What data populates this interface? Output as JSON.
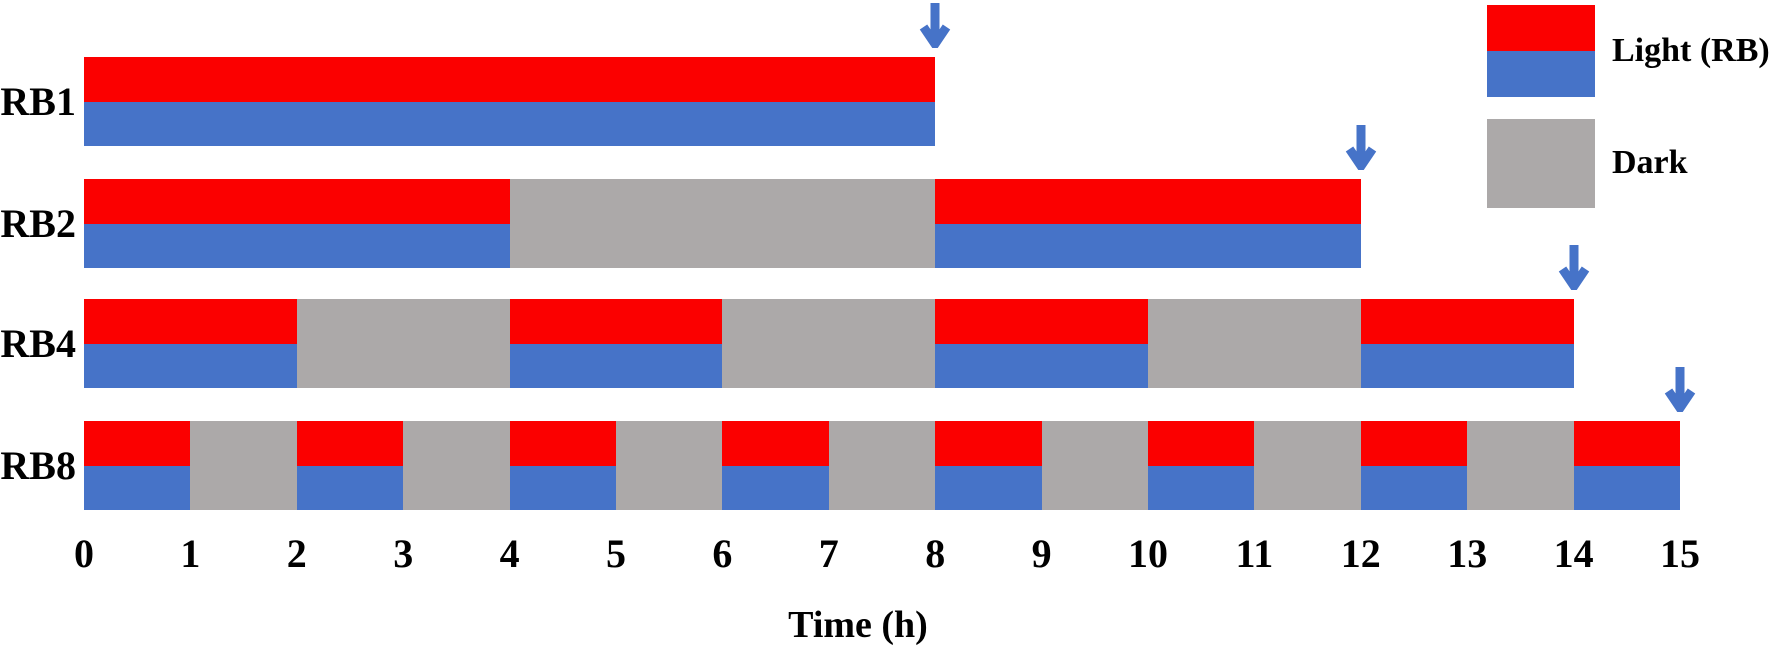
{
  "figure": {
    "background": "#ffffff"
  },
  "colors": {
    "light_red": "#FB0000",
    "light_blue": "#4673C8",
    "dark_gray": "#ACA9A9",
    "arrow_blue": "#4673C8",
    "text": "#000000"
  },
  "chart_data": {
    "type": "gantt",
    "title": "",
    "xlabel": "Time (h)",
    "xlim": [
      0,
      15
    ],
    "x_ticks": [
      "0",
      "1",
      "2",
      "3",
      "4",
      "5",
      "6",
      "7",
      "8",
      "9",
      "10",
      "11",
      "12",
      "13",
      "14",
      "15"
    ],
    "grid": false,
    "legend_position": "top-right",
    "legend": [
      {
        "label": "Light (RB)",
        "swatch": "light"
      },
      {
        "label": "Dark",
        "swatch": "dark"
      }
    ],
    "rows": [
      {
        "label": "RB1",
        "arrow_at": 8,
        "segments": [
          {
            "start": 0,
            "end": 8,
            "state": "light"
          }
        ]
      },
      {
        "label": "RB2",
        "arrow_at": 12,
        "segments": [
          {
            "start": 0,
            "end": 4,
            "state": "light"
          },
          {
            "start": 4,
            "end": 8,
            "state": "dark"
          },
          {
            "start": 8,
            "end": 12,
            "state": "light"
          }
        ]
      },
      {
        "label": "RB4",
        "arrow_at": 14,
        "segments": [
          {
            "start": 0,
            "end": 2,
            "state": "light"
          },
          {
            "start": 2,
            "end": 4,
            "state": "dark"
          },
          {
            "start": 4,
            "end": 6,
            "state": "light"
          },
          {
            "start": 6,
            "end": 8,
            "state": "dark"
          },
          {
            "start": 8,
            "end": 10,
            "state": "light"
          },
          {
            "start": 10,
            "end": 12,
            "state": "dark"
          },
          {
            "start": 12,
            "end": 14,
            "state": "light"
          }
        ]
      },
      {
        "label": "RB8",
        "arrow_at": 15,
        "segments": [
          {
            "start": 0,
            "end": 1,
            "state": "light"
          },
          {
            "start": 1,
            "end": 2,
            "state": "dark"
          },
          {
            "start": 2,
            "end": 3,
            "state": "light"
          },
          {
            "start": 3,
            "end": 4,
            "state": "dark"
          },
          {
            "start": 4,
            "end": 5,
            "state": "light"
          },
          {
            "start": 5,
            "end": 6,
            "state": "dark"
          },
          {
            "start": 6,
            "end": 7,
            "state": "light"
          },
          {
            "start": 7,
            "end": 8,
            "state": "dark"
          },
          {
            "start": 8,
            "end": 9,
            "state": "light"
          },
          {
            "start": 9,
            "end": 10,
            "state": "dark"
          },
          {
            "start": 10,
            "end": 11,
            "state": "light"
          },
          {
            "start": 11,
            "end": 12,
            "state": "dark"
          },
          {
            "start": 12,
            "end": 13,
            "state": "light"
          },
          {
            "start": 13,
            "end": 14,
            "state": "dark"
          },
          {
            "start": 14,
            "end": 15,
            "state": "light"
          }
        ]
      }
    ]
  }
}
